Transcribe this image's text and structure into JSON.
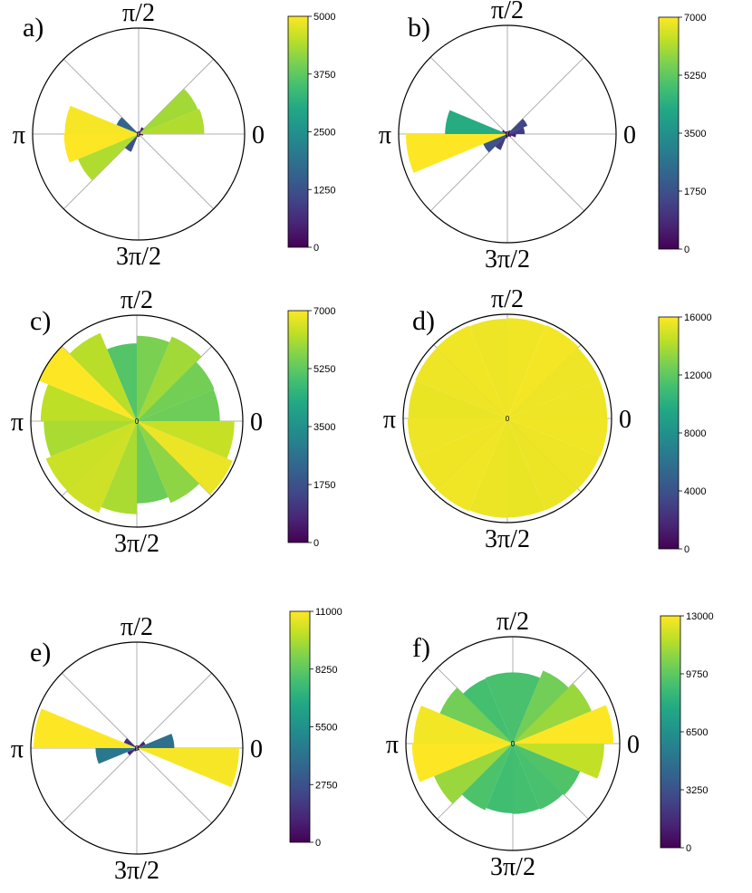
{
  "angle_labels": {
    "zero": "0",
    "half_pi": "π/2",
    "pi": "π",
    "three_half_pi": "3π/2"
  },
  "center_label": "0",
  "colormap": "viridis",
  "chart_data": [
    {
      "type": "polar-bar",
      "panel": "a)",
      "bins": 16,
      "angle_unit": "degrees",
      "theta_start": [
        0,
        22.5,
        45,
        67.5,
        90,
        112.5,
        135,
        157.5,
        180,
        202.5,
        225,
        247.5,
        270,
        292.5,
        315,
        337.5
      ],
      "values": [
        4400,
        4300,
        500,
        100,
        100,
        150,
        1600,
        4950,
        5000,
        4400,
        1300,
        100,
        100,
        100,
        100,
        300
      ],
      "rmax": 7100,
      "colorbar": {
        "min": 0,
        "max": 5000,
        "ticks": [
          "0",
          "1250",
          "2500",
          "3750",
          "5000"
        ]
      }
    },
    {
      "type": "polar-bar",
      "panel": "b)",
      "bins": 16,
      "angle_unit": "degrees",
      "theta_start": [
        0,
        22.5,
        45,
        67.5,
        90,
        112.5,
        135,
        157.5,
        180,
        202.5,
        225,
        247.5,
        270,
        292.5,
        315,
        337.5
      ],
      "values": [
        1200,
        1500,
        300,
        100,
        100,
        200,
        400,
        4300,
        7000,
        1800,
        1200,
        300,
        100,
        200,
        300,
        600
      ],
      "rmax": 7500,
      "colorbar": {
        "min": 0,
        "max": 7000,
        "ticks": [
          "0",
          "1750",
          "3500",
          "5250",
          "7000"
        ]
      }
    },
    {
      "type": "polar-bar",
      "panel": "c)",
      "bins": 16,
      "angle_unit": "degrees",
      "theta_start": [
        0,
        22.5,
        45,
        67.5,
        90,
        112.5,
        135,
        157.5,
        180,
        202.5,
        225,
        247.5,
        270,
        292.5,
        315,
        337.5
      ],
      "values": [
        5450,
        5500,
        6000,
        5600,
        5100,
        6250,
        7000,
        6300,
        6100,
        6450,
        6500,
        6100,
        5400,
        5800,
        6800,
        6400
      ],
      "rmax": 6950,
      "colorbar": {
        "min": 0,
        "max": 7000,
        "ticks": [
          "0",
          "1750",
          "3500",
          "5250",
          "7000"
        ]
      }
    },
    {
      "type": "polar-bar",
      "panel": "d)",
      "bins": 16,
      "angle_unit": "degrees",
      "theta_start": [
        0,
        22.5,
        45,
        67.5,
        90,
        112.5,
        135,
        157.5,
        180,
        202.5,
        225,
        247.5,
        270,
        292.5,
        315,
        337.5
      ],
      "values": [
        15600,
        15600,
        15800,
        15700,
        15600,
        15700,
        15600,
        15500,
        15600,
        15650,
        15700,
        15550,
        15500,
        15550,
        15600,
        15700
      ],
      "rmax": 16300,
      "colorbar": {
        "min": 0,
        "max": 16000,
        "ticks": [
          "0",
          "4000",
          "8000",
          "12000",
          "16000"
        ]
      }
    },
    {
      "type": "polar-bar",
      "panel": "e)",
      "bins": 16,
      "angle_unit": "degrees",
      "theta_start": [
        0,
        22.5,
        45,
        67.5,
        90,
        112.5,
        135,
        157.5,
        180,
        202.5,
        225,
        247.5,
        270,
        292.5,
        315,
        337.5
      ],
      "values": [
        4000,
        1000,
        300,
        100,
        100,
        200,
        1500,
        11000,
        4400,
        1100,
        400,
        100,
        100,
        200,
        300,
        10900
      ],
      "rmax": 11300,
      "colorbar": {
        "min": 0,
        "max": 11000,
        "ticks": [
          "0",
          "2750",
          "5500",
          "8250",
          "11000"
        ]
      }
    },
    {
      "type": "polar-bar",
      "panel": "f)",
      "bins": 16,
      "angle_unit": "degrees",
      "theta_start": [
        0,
        22.5,
        45,
        67.5,
        90,
        112.5,
        135,
        157.5,
        180,
        202.5,
        225,
        247.5,
        270,
        292.5,
        315,
        337.5
      ],
      "values": [
        13000,
        11000,
        10200,
        9200,
        9200,
        9100,
        10200,
        12800,
        13000,
        11000,
        9300,
        9000,
        9100,
        9200,
        9400,
        11800
      ],
      "rmax": 13800,
      "colorbar": {
        "min": 0,
        "max": 13000,
        "ticks": [
          "0",
          "3250",
          "6500",
          "9750",
          "13000"
        ]
      }
    }
  ]
}
